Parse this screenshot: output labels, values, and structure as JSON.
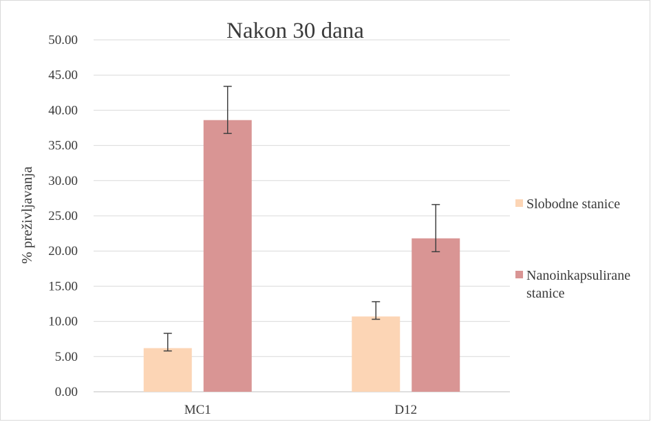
{
  "chart_data": {
    "type": "bar",
    "title": "Nakon 30 dana",
    "xlabel": "",
    "ylabel": "% preživljavanja",
    "categories": [
      "MC1",
      "D12"
    ],
    "ylim": [
      0,
      50
    ],
    "ytick_step": 5,
    "ytick_labels": [
      "0.00",
      "5.00",
      "10.00",
      "15.00",
      "20.00",
      "25.00",
      "30.00",
      "35.00",
      "40.00",
      "45.00",
      "50.00"
    ],
    "grid": true,
    "legend_position": "right",
    "series": [
      {
        "name": "Slobodne stanice",
        "legend_lines": [
          "Slobodne stanice"
        ],
        "color": "#fcd5b5",
        "values": [
          6.2,
          10.7
        ],
        "error_low": [
          5.8,
          10.3
        ],
        "error_high": [
          8.3,
          12.8
        ]
      },
      {
        "name": "Nanoinkapsulirane stanice",
        "legend_lines": [
          "Nanoinkapsulirane",
          "stanice"
        ],
        "color": "#d99594",
        "values": [
          38.6,
          21.8
        ],
        "error_low": [
          36.7,
          19.9
        ],
        "error_high": [
          43.4,
          26.6
        ]
      }
    ],
    "colors": {
      "grid": "#d9d9d9",
      "axis": "#bfbfbf",
      "text": "#3a3a3a",
      "errorbar": "#404040"
    }
  }
}
